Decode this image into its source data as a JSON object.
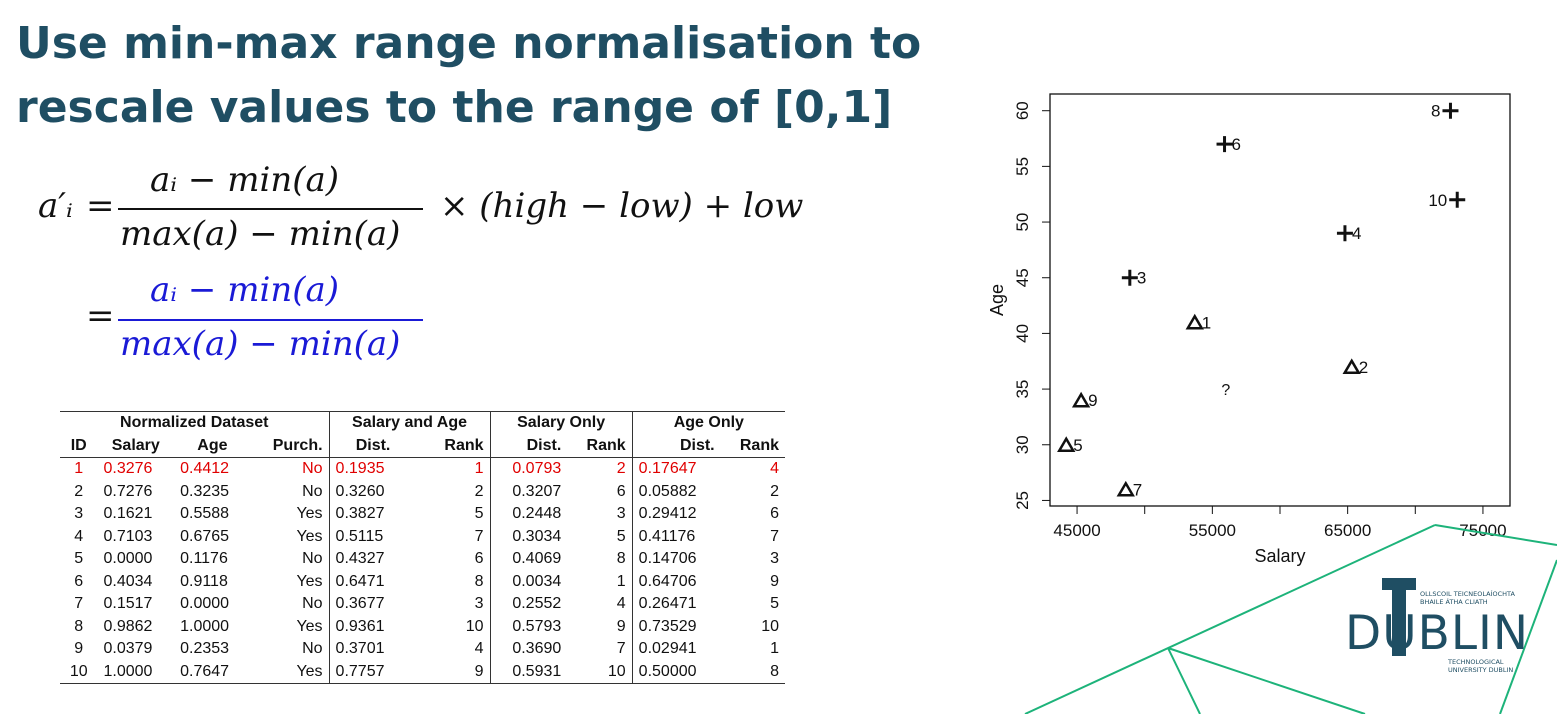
{
  "slide": {
    "title": "Use min-max range normalisation to rescale values to the range of [0,1]"
  },
  "formula": {
    "lhs": "a′ᵢ",
    "eq": "=",
    "num1": "aᵢ − min(a)",
    "den1": "max(a) − min(a)",
    "tail": "× (high − low) + low",
    "num2": "aᵢ − min(a)",
    "den2": "max(a) − min(a)",
    "highlight_color": "#1a1ad6"
  },
  "table": {
    "group_headers": [
      "Normalized Dataset",
      "Salary and Age",
      "Salary Only",
      "Age Only"
    ],
    "columns": [
      "ID",
      "Salary",
      "Age",
      "Purch.",
      "Dist.",
      "Rank",
      "Dist.",
      "Rank",
      "Dist.",
      "Rank"
    ],
    "rows": [
      [
        "1",
        "0.3276",
        "0.4412",
        "No",
        "0.1935",
        "1",
        "0.0793",
        "2",
        "0.17647",
        "4"
      ],
      [
        "2",
        "0.7276",
        "0.3235",
        "No",
        "0.3260",
        "2",
        "0.3207",
        "6",
        "0.05882",
        "2"
      ],
      [
        "3",
        "0.1621",
        "0.5588",
        "Yes",
        "0.3827",
        "5",
        "0.2448",
        "3",
        "0.29412",
        "6"
      ],
      [
        "4",
        "0.7103",
        "0.6765",
        "Yes",
        "0.5115",
        "7",
        "0.3034",
        "5",
        "0.41176",
        "7"
      ],
      [
        "5",
        "0.0000",
        "0.1176",
        "No",
        "0.4327",
        "6",
        "0.4069",
        "8",
        "0.14706",
        "3"
      ],
      [
        "6",
        "0.4034",
        "0.9118",
        "Yes",
        "0.6471",
        "8",
        "0.0034",
        "1",
        "0.64706",
        "9"
      ],
      [
        "7",
        "0.1517",
        "0.0000",
        "No",
        "0.3677",
        "3",
        "0.2552",
        "4",
        "0.26471",
        "5"
      ],
      [
        "8",
        "0.9862",
        "1.0000",
        "Yes",
        "0.9361",
        "10",
        "0.5793",
        "9",
        "0.73529",
        "10"
      ],
      [
        "9",
        "0.0379",
        "0.2353",
        "No",
        "0.3701",
        "4",
        "0.3690",
        "7",
        "0.02941",
        "1"
      ],
      [
        "10",
        "1.0000",
        "0.7647",
        "Yes",
        "0.7757",
        "9",
        "0.5931",
        "10",
        "0.50000",
        "8"
      ]
    ],
    "highlight_row": 0,
    "highlight_color": "#e00000"
  },
  "chart_data": {
    "type": "scatter",
    "xlabel": "Salary",
    "ylabel": "Age",
    "xlim": [
      43000,
      77000
    ],
    "ylim": [
      24.5,
      61.5
    ],
    "xticks": [
      45000,
      55000,
      65000,
      75000
    ],
    "yticks": [
      25,
      30,
      35,
      40,
      45,
      50,
      55,
      60
    ],
    "points": [
      {
        "label": "1",
        "x": 53700,
        "y": 41,
        "marker": "triangle"
      },
      {
        "label": "2",
        "x": 65300,
        "y": 37,
        "marker": "triangle"
      },
      {
        "label": "3",
        "x": 48900,
        "y": 45,
        "marker": "plus"
      },
      {
        "label": "4",
        "x": 64800,
        "y": 49,
        "marker": "plus"
      },
      {
        "label": "5",
        "x": 44200,
        "y": 30,
        "marker": "triangle"
      },
      {
        "label": "6",
        "x": 55900,
        "y": 57,
        "marker": "plus"
      },
      {
        "label": "7",
        "x": 48600,
        "y": 26,
        "marker": "triangle"
      },
      {
        "label": "8",
        "x": 72600,
        "y": 60,
        "marker": "plus"
      },
      {
        "label": "9",
        "x": 45300,
        "y": 34,
        "marker": "triangle"
      },
      {
        "label": "10",
        "x": 73100,
        "y": 52,
        "marker": "plus"
      }
    ],
    "query": {
      "label": "?",
      "x": 56000,
      "y": 35
    }
  },
  "logo": {
    "wordmark": "DUBLIN",
    "line1": "OLLSCOIL TEICNEOLAÍOCHTA",
    "line2": "BHAILE ÁTHA CLIATH",
    "line3": "TECHNOLOGICAL",
    "line4": "UNIVERSITY DUBLIN",
    "accent": "#1f4e63",
    "deco_line_color": "#1db37a"
  }
}
